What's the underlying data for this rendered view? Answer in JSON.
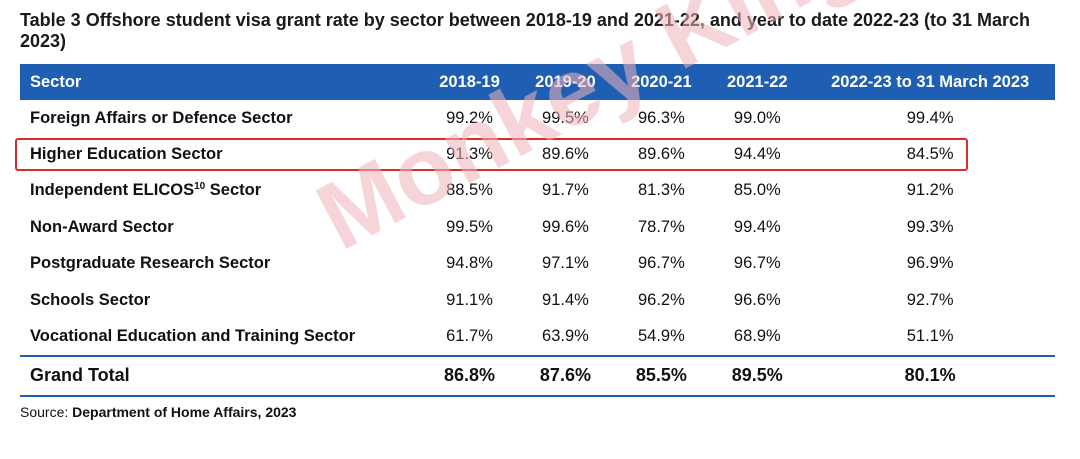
{
  "caption": "Table 3 Offshore student visa grant rate by sector between 2018-19 and 2021-22, and year to date 2022-23 (to 31 March 2023)",
  "headers": [
    "Sector",
    "2018-19",
    "2019-20",
    "2020-21",
    "2021-22",
    "2022-23 to 31 March 2023"
  ],
  "rows": [
    {
      "sector": "Foreign Affairs or Defence Sector",
      "sup": "",
      "values": [
        "99.2%",
        "99.5%",
        "96.3%",
        "99.0%",
        "99.4%"
      ]
    },
    {
      "sector": "Higher Education Sector",
      "sup": "",
      "values": [
        "91.3%",
        "89.6%",
        "89.6%",
        "94.4%",
        "84.5%"
      ]
    },
    {
      "sector": "Independent ELICOS",
      "sup": "10",
      "sector_suffix": " Sector",
      "values": [
        "88.5%",
        "91.7%",
        "81.3%",
        "85.0%",
        "91.2%"
      ]
    },
    {
      "sector": "Non-Award Sector",
      "sup": "",
      "values": [
        "99.5%",
        "99.6%",
        "78.7%",
        "99.4%",
        "99.3%"
      ]
    },
    {
      "sector": "Postgraduate Research Sector",
      "sup": "",
      "values": [
        "94.8%",
        "97.1%",
        "96.7%",
        "96.7%",
        "96.9%"
      ]
    },
    {
      "sector": "Schools Sector",
      "sup": "",
      "values": [
        "91.1%",
        "91.4%",
        "96.2%",
        "96.6%",
        "92.7%"
      ]
    },
    {
      "sector": "Vocational Education and Training Sector",
      "sup": "",
      "values": [
        "61.7%",
        "63.9%",
        "54.9%",
        "68.9%",
        "51.1%"
      ]
    }
  ],
  "total": {
    "label": "Grand Total",
    "values": [
      "86.8%",
      "87.6%",
      "85.5%",
      "89.5%",
      "80.1%"
    ]
  },
  "source": {
    "prefix": "Source: ",
    "text": "Department of Home Affairs, 2023"
  },
  "watermark": "Monkey King",
  "colors": {
    "header_bg": "#1e5fb3",
    "highlight": "#e02a2a",
    "watermark": "#f0b3ba"
  }
}
